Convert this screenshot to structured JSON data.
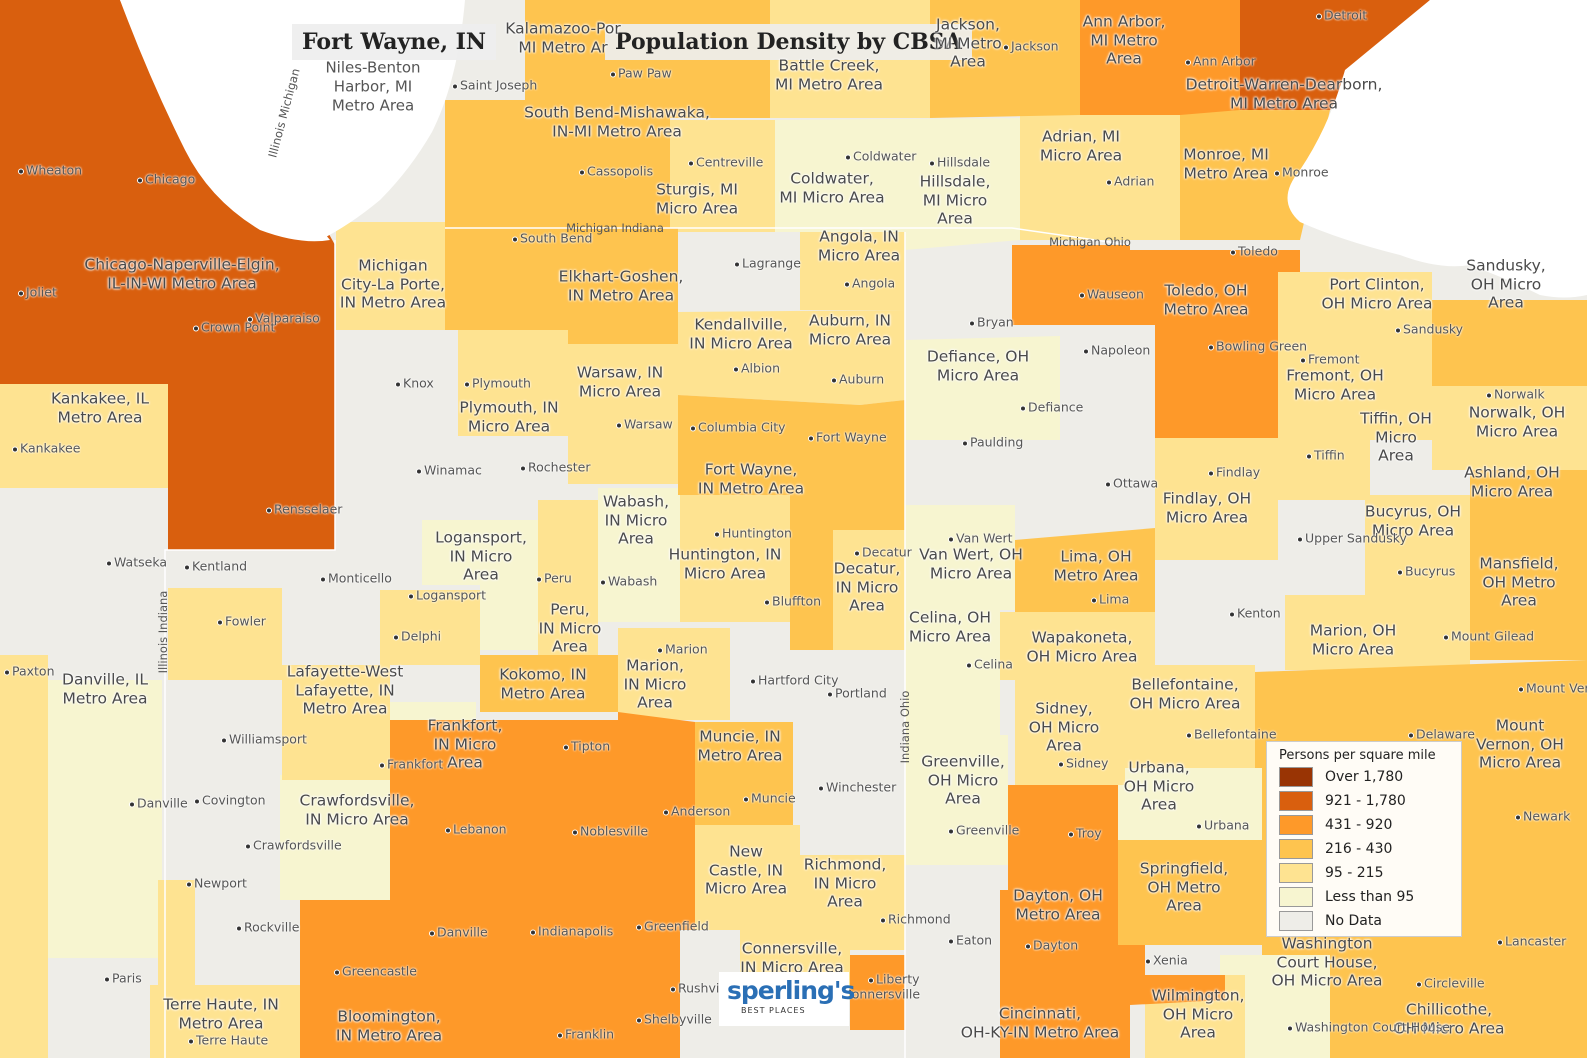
{
  "title": {
    "city": "Fort Wayne, IN",
    "subtitle": "Population Density by CBSA"
  },
  "colors": {
    "over_1780": "#993404",
    "c921_1780": "#d95f0e",
    "c431_920": "#fe9929",
    "c216_430": "#fec44f",
    "c95_215": "#fee391",
    "less_95": "#f7f5d0",
    "no_data": "#eeede8",
    "water": "#ffffff",
    "state_line": "#ffffff"
  },
  "legend": {
    "title": "Persons per square mile",
    "items": [
      {
        "label": "Over 1,780",
        "color": "#993404"
      },
      {
        "label": "921 - 1,780",
        "color": "#d95f0e"
      },
      {
        "label": "431 - 920",
        "color": "#fe9929"
      },
      {
        "label": "216 - 430",
        "color": "#fec44f"
      },
      {
        "label": "95 - 215",
        "color": "#fee391"
      },
      {
        "label": "Less than 95",
        "color": "#f7f5d0"
      },
      {
        "label": "No Data",
        "color": "#eeede8"
      }
    ]
  },
  "areas": [
    {
      "l1": "Niles-Benton",
      "l2": "Harbor, MI",
      "l3": "Metro Area"
    },
    {
      "l1": "Kalamazoo-Por",
      "l2": "MI Metro Ar"
    },
    {
      "l1": "Battle Creek,",
      "l2": "MI Metro Area"
    },
    {
      "l1": "Jackson,",
      "l2": "MI Metro",
      "l3": "Area"
    },
    {
      "l1": "Ann Arbor,",
      "l2": "MI Metro",
      "l3": "Area"
    },
    {
      "l1": "Detroit-Warren-Dearborn,",
      "l2": "MI Metro Area"
    },
    {
      "l1": "South Bend-Mishawaka,",
      "l2": "IN-MI Metro Area"
    },
    {
      "l1": "Sturgis, MI",
      "l2": "Micro Area"
    },
    {
      "l1": "Coldwater,",
      "l2": "MI Micro Area"
    },
    {
      "l1": "Hillsdale,",
      "l2": "MI Micro",
      "l3": "Area"
    },
    {
      "l1": "Adrian, MI",
      "l2": "Micro Area"
    },
    {
      "l1": "Monroe, MI",
      "l2": "Metro Area"
    },
    {
      "l1": "Chicago-Naperville-Elgin,",
      "l2": "IL-IN-WI Metro Area"
    },
    {
      "l1": "Michigan",
      "l2": "City-La Porte,",
      "l3": "IN Metro Area"
    },
    {
      "l1": "Elkhart-Goshen,",
      "l2": "IN Metro Area"
    },
    {
      "l1": "Angola, IN",
      "l2": "Micro Area"
    },
    {
      "l1": "Toledo, OH",
      "l2": "Metro Area"
    },
    {
      "l1": "Port Clinton,",
      "l2": "OH Micro Area"
    },
    {
      "l1": "Sandusky,",
      "l2": "OH Micro",
      "l3": "Area"
    },
    {
      "l1": "Kendallville,",
      "l2": "IN Micro Area"
    },
    {
      "l1": "Auburn, IN",
      "l2": "Micro Area"
    },
    {
      "l1": "Defiance, OH",
      "l2": "Micro Area"
    },
    {
      "l1": "Fremont, OH",
      "l2": "Micro Area"
    },
    {
      "l1": "Kankakee, IL",
      "l2": "Metro Area"
    },
    {
      "l1": "Plymouth, IN",
      "l2": "Micro Area"
    },
    {
      "l1": "Warsaw, IN",
      "l2": "Micro Area"
    },
    {
      "l1": "Tiffin, OH",
      "l2": "Micro",
      "l3": "Area"
    },
    {
      "l1": "Norwalk, OH",
      "l2": "Micro Area"
    },
    {
      "l1": "Fort Wayne,",
      "l2": "IN Metro Area"
    },
    {
      "l1": "Findlay, OH",
      "l2": "Micro Area"
    },
    {
      "l1": "Ashland, OH",
      "l2": "Micro Area"
    },
    {
      "l1": "Logansport,",
      "l2": "IN Micro",
      "l3": "Area"
    },
    {
      "l1": "Wabash,",
      "l2": "IN Micro",
      "l3": "Area"
    },
    {
      "l1": "Huntington, IN",
      "l2": "Micro Area"
    },
    {
      "l1": "Decatur,",
      "l2": "IN Micro",
      "l3": "Area"
    },
    {
      "l1": "Van Wert, OH",
      "l2": "Micro Area"
    },
    {
      "l1": "Lima, OH",
      "l2": "Metro Area"
    },
    {
      "l1": "Bucyrus, OH",
      "l2": "Micro Area"
    },
    {
      "l1": "Mansfield,",
      "l2": "OH Metro",
      "l3": "Area"
    },
    {
      "l1": "Peru,",
      "l2": "IN Micro",
      "l3": "Area"
    },
    {
      "l1": "Celina, OH",
      "l2": "Micro Area"
    },
    {
      "l1": "Wapakoneta,",
      "l2": "OH Micro Area"
    },
    {
      "l1": "Marion, OH",
      "l2": "Micro Area"
    },
    {
      "l1": "Danville, IL",
      "l2": "Metro Area"
    },
    {
      "l1": "Lafayette-West",
      "l2": "Lafayette, IN",
      "l3": "Metro Area"
    },
    {
      "l1": "Kokomo, IN",
      "l2": "Metro Area"
    },
    {
      "l1": "Marion,",
      "l2": "IN Micro",
      "l3": "Area"
    },
    {
      "l1": "Sidney,",
      "l2": "OH Micro",
      "l3": "Area"
    },
    {
      "l1": "Bellefontaine,",
      "l2": "OH Micro Area"
    },
    {
      "l1": "Mount",
      "l2": "Vernon, OH",
      "l3": "Micro Area"
    },
    {
      "l1": "Frankfort,",
      "l2": "IN Micro",
      "l3": "Area"
    },
    {
      "l1": "Muncie, IN",
      "l2": "Metro Area"
    },
    {
      "l1": "Greenville,",
      "l2": "OH Micro",
      "l3": "Area"
    },
    {
      "l1": "Urbana,",
      "l2": "OH Micro",
      "l3": "Area"
    },
    {
      "l1": "Crawfordsville,",
      "l2": "IN Micro Area"
    },
    {
      "l1": "New",
      "l2": "Castle, IN",
      "l3": "Micro Area"
    },
    {
      "l1": "Richmond,",
      "l2": "IN Micro",
      "l3": "Area"
    },
    {
      "l1": "Springfield,",
      "l2": "OH Metro",
      "l3": "Area"
    },
    {
      "l1": "Dayton, OH",
      "l2": "Metro Area"
    },
    {
      "l1": "Washington",
      "l2": "Court House,",
      "l3": "OH Micro Area"
    },
    {
      "l1": "Connersville,",
      "l2": "IN Micro Area"
    },
    {
      "l1": "Wilmington,",
      "l2": "OH Micro",
      "l3": "Area"
    },
    {
      "l1": "Terre Haute, IN",
      "l2": "Metro Area"
    },
    {
      "l1": "Bloomington,",
      "l2": "IN Metro Area"
    },
    {
      "l1": "Cincinnati,",
      "l2": "OH-KY-IN Metro Area"
    },
    {
      "l1": "Chillicothe,",
      "l2": "OH Micro Area"
    }
  ],
  "cities": [
    "Wheaton",
    "Chicago",
    "Joliet",
    "Crown Point",
    "Valparaiso",
    "Kankakee",
    "Rensselaer",
    "Kentland",
    "Watseka",
    "Saint Joseph",
    "South Bend",
    "Cassopolis",
    "Paw Paw",
    "Centreville",
    "Coldwater",
    "Hillsdale",
    "Jackson",
    "Ann Arbor",
    "Detroit",
    "Adrian",
    "Monroe",
    "Lagrange",
    "Angola",
    "Toledo",
    "Wauseon",
    "Bowling Green",
    "Sandusky",
    "Bryan",
    "Napoleon",
    "Fremont",
    "Norwalk",
    "Knox",
    "Plymouth",
    "Albion",
    "Auburn",
    "Defiance",
    "Warsaw",
    "Columbia City",
    "Fort Wayne",
    "Paulding",
    "Tiffin",
    "Winamac",
    "Rochester",
    "Ottawa",
    "Findlay",
    "Huntington",
    "Van Wert",
    "Upper Sandusky",
    "Decatur",
    "Monticello",
    "Peru",
    "Wabash",
    "Bluffton",
    "Logansport",
    "Lima",
    "Bucyrus",
    "Kenton",
    "Mount Gilead",
    "Fowler",
    "Delphi",
    "Paxton",
    "Marion",
    "Hartford City",
    "Celina",
    "Portland",
    "Mount Vernon",
    "Williamsport",
    "Tipton",
    "Frankfort",
    "Bellefontaine",
    "Delaware",
    "Sidney",
    "Danville",
    "Covington",
    "Muncie",
    "Anderson",
    "Lebanon",
    "Noblesville",
    "Winchester",
    "Crawfordsville",
    "Urbana",
    "Newark",
    "Greenville",
    "Troy",
    "Newport",
    "Rockville",
    "Danville",
    "Indianapolis",
    "Greenfield",
    "Richmond",
    "Eaton",
    "Dayton",
    "Greencastle",
    "Xenia",
    "Lancaster",
    "Paris",
    "Rushville",
    "Connersville",
    "Liberty",
    "Circleville",
    "Washington Court House",
    "Terre Haute",
    "Franklin",
    "Shelbyville"
  ],
  "boundary_labels": {
    "il_mi": "Illinois Michigan",
    "mi_in": "Michigan Indiana",
    "mi_oh": "Michigan Ohio",
    "il_in": "Illinois Indiana",
    "in_oh": "Indiana Ohio"
  },
  "logo": {
    "main": "sperling's",
    "sub": "BEST PLACES"
  }
}
